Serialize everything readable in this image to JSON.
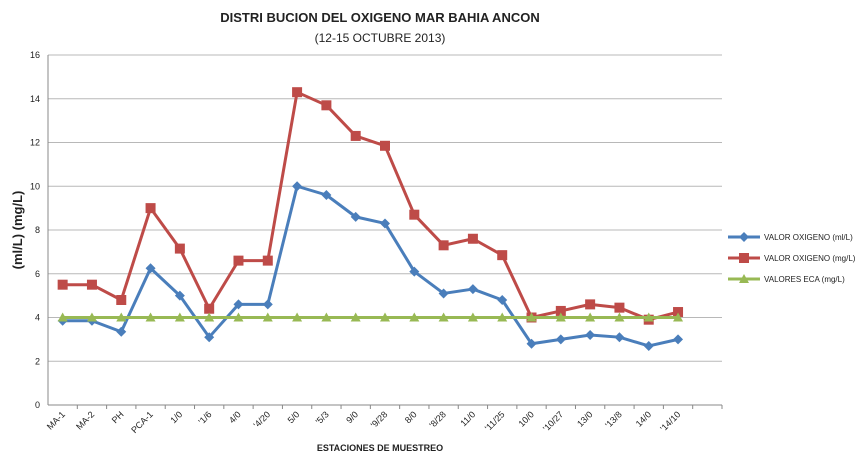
{
  "chart_data": {
    "type": "line",
    "title": "DISTRI BUCION DEL OXIGENO MAR BAHIA ANCON",
    "subtitle": "(12-15 OCTUBRE 2013)",
    "y_label": "(ml/L) (mg/L)",
    "x_label": "ESTACIONES DE MUESTREO",
    "categories": [
      "MA-1",
      "MA-2",
      "PH",
      "PCA-1",
      "1/0",
      "'1/6",
      "4/0",
      "'4/20",
      "5/0",
      "'5/3",
      "9/0",
      "'9/28",
      "8/0",
      "'8/28",
      "11/0",
      "'11/25",
      "10/0",
      "'10/27",
      "13/0",
      "'13/8",
      "14/0",
      "'14/10",
      null
    ],
    "series": [
      {
        "name": "VALOR OXIGENO (ml/L)",
        "color": "#4a7ebb",
        "marker": "diamond",
        "values": [
          3.85,
          3.85,
          3.35,
          6.25,
          5.0,
          3.1,
          4.6,
          4.6,
          10.0,
          9.6,
          8.6,
          8.3,
          6.1,
          5.1,
          5.3,
          4.8,
          2.8,
          3.0,
          3.2,
          3.1,
          2.7,
          3.0,
          null
        ]
      },
      {
        "name": "VALOR OXIGENO (mg/L)",
        "color": "#be4b48",
        "marker": "square",
        "values": [
          5.5,
          5.5,
          4.8,
          9.0,
          7.15,
          4.4,
          6.6,
          6.6,
          14.3,
          13.7,
          12.3,
          11.85,
          8.7,
          7.3,
          7.6,
          6.85,
          4.0,
          4.3,
          4.6,
          4.45,
          3.9,
          4.25,
          null
        ]
      },
      {
        "name": "VALORES ECA (mg/L)",
        "color": "#98b954",
        "marker": "triangle",
        "values": [
          4,
          4,
          4,
          4,
          4,
          4,
          4,
          4,
          4,
          4,
          4,
          4,
          4,
          4,
          4,
          4,
          4,
          4,
          4,
          4,
          4,
          4,
          null
        ]
      }
    ],
    "ylim": [
      0,
      16
    ],
    "yticks": [
      0,
      2,
      4,
      6,
      8,
      10,
      12,
      14,
      16
    ],
    "grid": true,
    "legend": "right"
  }
}
